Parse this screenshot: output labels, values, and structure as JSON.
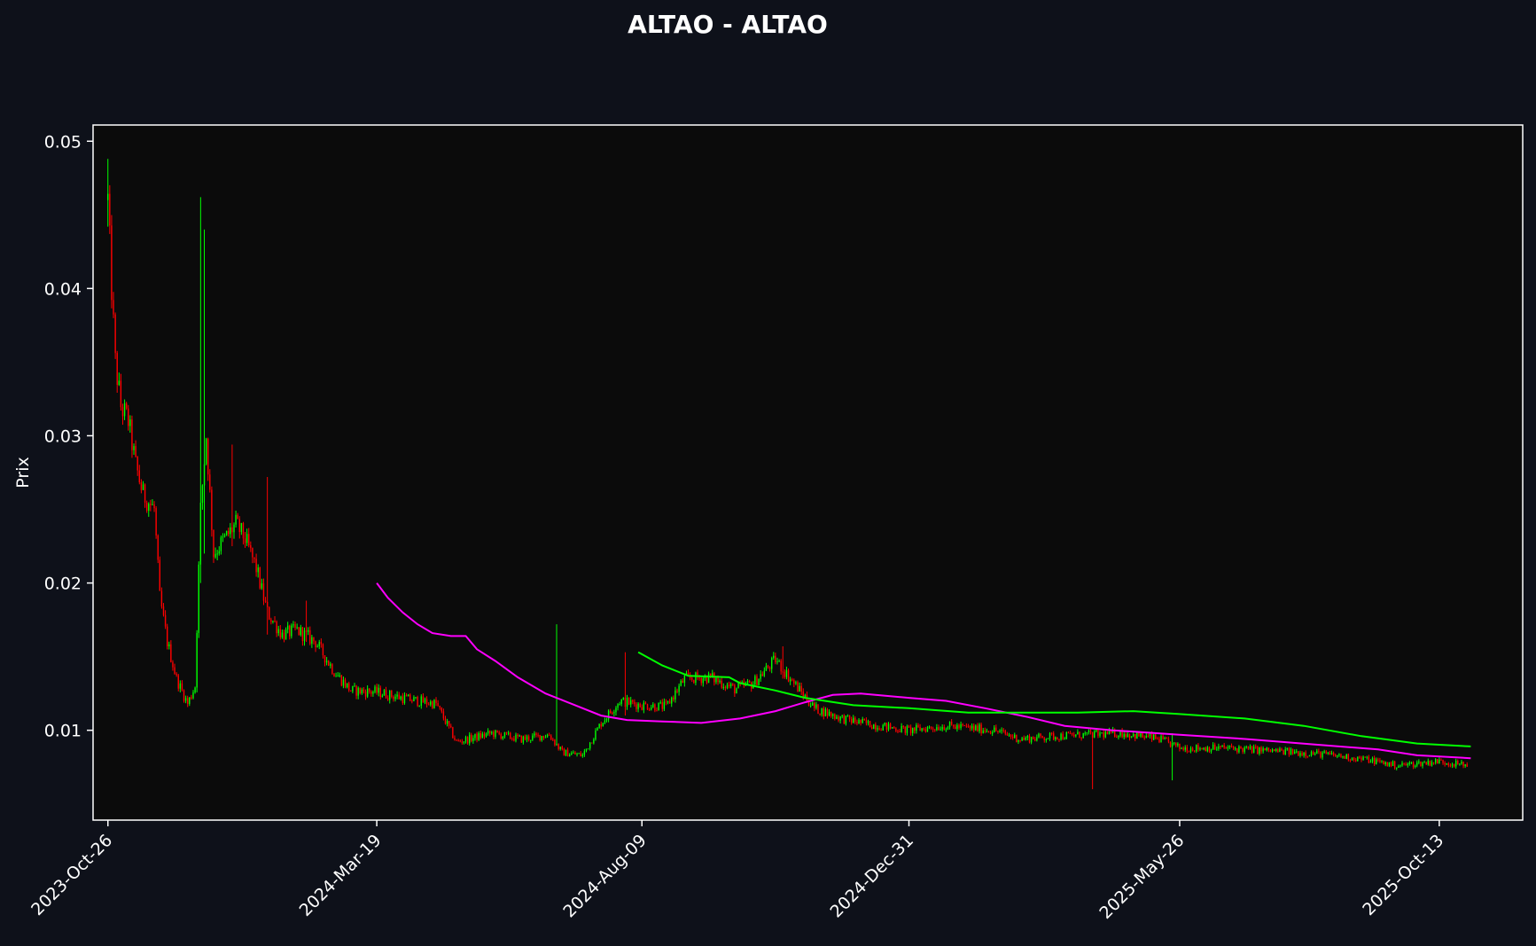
{
  "page": {
    "background": "#0e111a",
    "plot_background": "#0b0b0b",
    "axis_color": "#ffffff"
  },
  "chart_data": {
    "type": "candlestick",
    "title": "ALTAO - ALTAO",
    "xlabel": "",
    "ylabel": "Prix",
    "ylim": [
      0.0039,
      0.0511
    ],
    "xlim": [
      "2023-10-18",
      "2025-11-27"
    ],
    "grid": false,
    "legend": "none",
    "y_ticks": [
      {
        "value": 0.01,
        "label": "0.01"
      },
      {
        "value": 0.02,
        "label": "0.02"
      },
      {
        "value": 0.03,
        "label": "0.03"
      },
      {
        "value": 0.04,
        "label": "0.04"
      },
      {
        "value": 0.05,
        "label": "0.05"
      }
    ],
    "x_ticks": [
      {
        "date": "2023-10-26",
        "label": "2023-Oct-26"
      },
      {
        "date": "2024-03-19",
        "label": "2024-Mar-19"
      },
      {
        "date": "2024-08-09",
        "label": "2024-Aug-09"
      },
      {
        "date": "2024-12-31",
        "label": "2024-Dec-31"
      },
      {
        "date": "2025-05-26",
        "label": "2025-May-26"
      },
      {
        "date": "2025-10-13",
        "label": "2025-Oct-13"
      }
    ],
    "colors": {
      "up": "#00ff00",
      "down": "#ff0000",
      "ma_short": "#ff00ff",
      "ma_long": "#00ff00"
    },
    "price_path": [
      [
        "2023-10-26",
        0.046
      ],
      [
        "2023-10-28",
        0.04
      ],
      [
        "2023-10-30",
        0.035
      ],
      [
        "2023-11-02",
        0.032
      ],
      [
        "2023-11-06",
        0.031
      ],
      [
        "2023-11-10",
        0.028
      ],
      [
        "2023-11-14",
        0.026
      ],
      [
        "2023-11-20",
        0.025
      ],
      [
        "2023-11-23",
        0.019
      ],
      [
        "2023-11-27",
        0.016
      ],
      [
        "2023-12-02",
        0.0135
      ],
      [
        "2023-12-08",
        0.0118
      ],
      [
        "2023-12-12",
        0.013
      ],
      [
        "2023-12-15",
        0.025
      ],
      [
        "2023-12-18",
        0.03
      ],
      [
        "2023-12-22",
        0.022
      ],
      [
        "2023-12-28",
        0.023
      ],
      [
        "2024-01-03",
        0.024
      ],
      [
        "2024-01-08",
        0.023
      ],
      [
        "2024-01-14",
        0.021
      ],
      [
        "2024-01-20",
        0.018
      ],
      [
        "2024-01-28",
        0.0165
      ],
      [
        "2024-02-05",
        0.0168
      ],
      [
        "2024-02-15",
        0.016
      ],
      [
        "2024-02-25",
        0.014
      ],
      [
        "2024-03-05",
        0.0127
      ],
      [
        "2024-03-19",
        0.0126
      ],
      [
        "2024-04-05",
        0.0121
      ],
      [
        "2024-04-20",
        0.0118
      ],
      [
        "2024-05-01",
        0.0092
      ],
      [
        "2024-05-20",
        0.0098
      ],
      [
        "2024-06-05",
        0.0094
      ],
      [
        "2024-06-20",
        0.0097
      ],
      [
        "2024-06-27",
        0.0085
      ],
      [
        "2024-07-08",
        0.0083
      ],
      [
        "2024-07-18",
        0.0105
      ],
      [
        "2024-07-28",
        0.012
      ],
      [
        "2024-08-09",
        0.0117
      ],
      [
        "2024-08-22",
        0.0116
      ],
      [
        "2024-09-01",
        0.0135
      ],
      [
        "2024-09-15",
        0.0136
      ],
      [
        "2024-09-28",
        0.0128
      ],
      [
        "2024-10-08",
        0.0132
      ],
      [
        "2024-10-20",
        0.0148
      ],
      [
        "2024-10-28",
        0.0135
      ],
      [
        "2024-11-10",
        0.0115
      ],
      [
        "2024-11-25",
        0.0108
      ],
      [
        "2024-12-10",
        0.0104
      ],
      [
        "2024-12-31",
        0.01
      ],
      [
        "2025-01-20",
        0.0103
      ],
      [
        "2025-02-15",
        0.01
      ],
      [
        "2025-03-01",
        0.0094
      ],
      [
        "2025-03-20",
        0.0096
      ],
      [
        "2025-04-05",
        0.0097
      ],
      [
        "2025-04-25",
        0.0098
      ],
      [
        "2025-05-15",
        0.0094
      ],
      [
        "2025-05-26",
        0.0088
      ],
      [
        "2025-06-20",
        0.0088
      ],
      [
        "2025-07-15",
        0.0086
      ],
      [
        "2025-08-10",
        0.0084
      ],
      [
        "2025-09-05",
        0.008
      ],
      [
        "2025-09-20",
        0.0076
      ],
      [
        "2025-10-13",
        0.0079
      ],
      [
        "2025-10-28",
        0.0076
      ]
    ],
    "spikes": [
      {
        "date": "2023-10-26",
        "high": 0.0488,
        "low": 0.0442
      },
      {
        "date": "2023-12-15",
        "high": 0.0462,
        "low": 0.02
      },
      {
        "date": "2023-12-17",
        "high": 0.044,
        "low": 0.022
      },
      {
        "date": "2024-01-01",
        "high": 0.0294,
        "low": 0.0225
      },
      {
        "date": "2024-01-20",
        "high": 0.0272,
        "low": 0.0165
      },
      {
        "date": "2024-02-10",
        "high": 0.0188,
        "low": 0.016
      },
      {
        "date": "2024-06-24",
        "high": 0.0172,
        "low": 0.0095
      },
      {
        "date": "2024-07-31",
        "high": 0.0153,
        "low": 0.011
      },
      {
        "date": "2024-10-24",
        "high": 0.0157,
        "low": 0.0135
      },
      {
        "date": "2025-04-09",
        "high": 0.0098,
        "low": 0.006
      },
      {
        "date": "2025-05-22",
        "high": 0.0098,
        "low": 0.0066
      }
    ],
    "series": [
      {
        "values": [
          [
            "2024-03-19",
            0.02
          ],
          [
            "2024-03-25",
            0.019
          ],
          [
            "2024-04-02",
            0.018
          ],
          [
            "2024-04-10",
            0.0172
          ],
          [
            "2024-04-18",
            0.0166
          ],
          [
            "2024-04-28",
            0.0164
          ],
          [
            "2024-05-06",
            0.0164
          ],
          [
            "2024-05-12",
            0.0155
          ],
          [
            "2024-05-22",
            0.0147
          ],
          [
            "2024-06-03",
            0.0136
          ],
          [
            "2024-06-18",
            0.0125
          ],
          [
            "2024-07-02",
            0.0118
          ],
          [
            "2024-07-18",
            0.011
          ],
          [
            "2024-08-01",
            0.0107
          ],
          [
            "2024-08-20",
            0.0106
          ],
          [
            "2024-09-10",
            0.0105
          ],
          [
            "2024-10-01",
            0.0108
          ],
          [
            "2024-10-20",
            0.0113
          ],
          [
            "2024-11-05",
            0.0119
          ],
          [
            "2024-11-20",
            0.0124
          ],
          [
            "2024-12-05",
            0.0125
          ],
          [
            "2024-12-31",
            0.0122
          ],
          [
            "2025-01-20",
            0.012
          ],
          [
            "2025-02-10",
            0.0115
          ],
          [
            "2025-03-05",
            0.0109
          ],
          [
            "2025-03-25",
            0.0103
          ],
          [
            "2025-04-20",
            0.01
          ],
          [
            "2025-05-26",
            0.0097
          ],
          [
            "2025-07-01",
            0.0094
          ],
          [
            "2025-08-10",
            0.009
          ],
          [
            "2025-09-10",
            0.0087
          ],
          [
            "2025-10-01",
            0.0083
          ],
          [
            "2025-10-30",
            0.0081
          ]
        ]
      },
      {
        "values": [
          [
            "2024-08-07",
            0.0153
          ],
          [
            "2024-08-20",
            0.0144
          ],
          [
            "2024-09-03",
            0.0137
          ],
          [
            "2024-09-25",
            0.0136
          ],
          [
            "2024-10-01",
            0.0132
          ],
          [
            "2024-10-20",
            0.0127
          ],
          [
            "2024-11-05",
            0.0122
          ],
          [
            "2024-12-01",
            0.0117
          ],
          [
            "2024-12-31",
            0.0115
          ],
          [
            "2025-02-01",
            0.0112
          ],
          [
            "2025-03-01",
            0.0112
          ],
          [
            "2025-04-01",
            0.0112
          ],
          [
            "2025-05-01",
            0.0113
          ],
          [
            "2025-05-26",
            0.0111
          ],
          [
            "2025-06-30",
            0.0108
          ],
          [
            "2025-08-01",
            0.0103
          ],
          [
            "2025-09-01",
            0.0096
          ],
          [
            "2025-10-01",
            0.0091
          ],
          [
            "2025-10-30",
            0.0089
          ]
        ]
      }
    ]
  }
}
